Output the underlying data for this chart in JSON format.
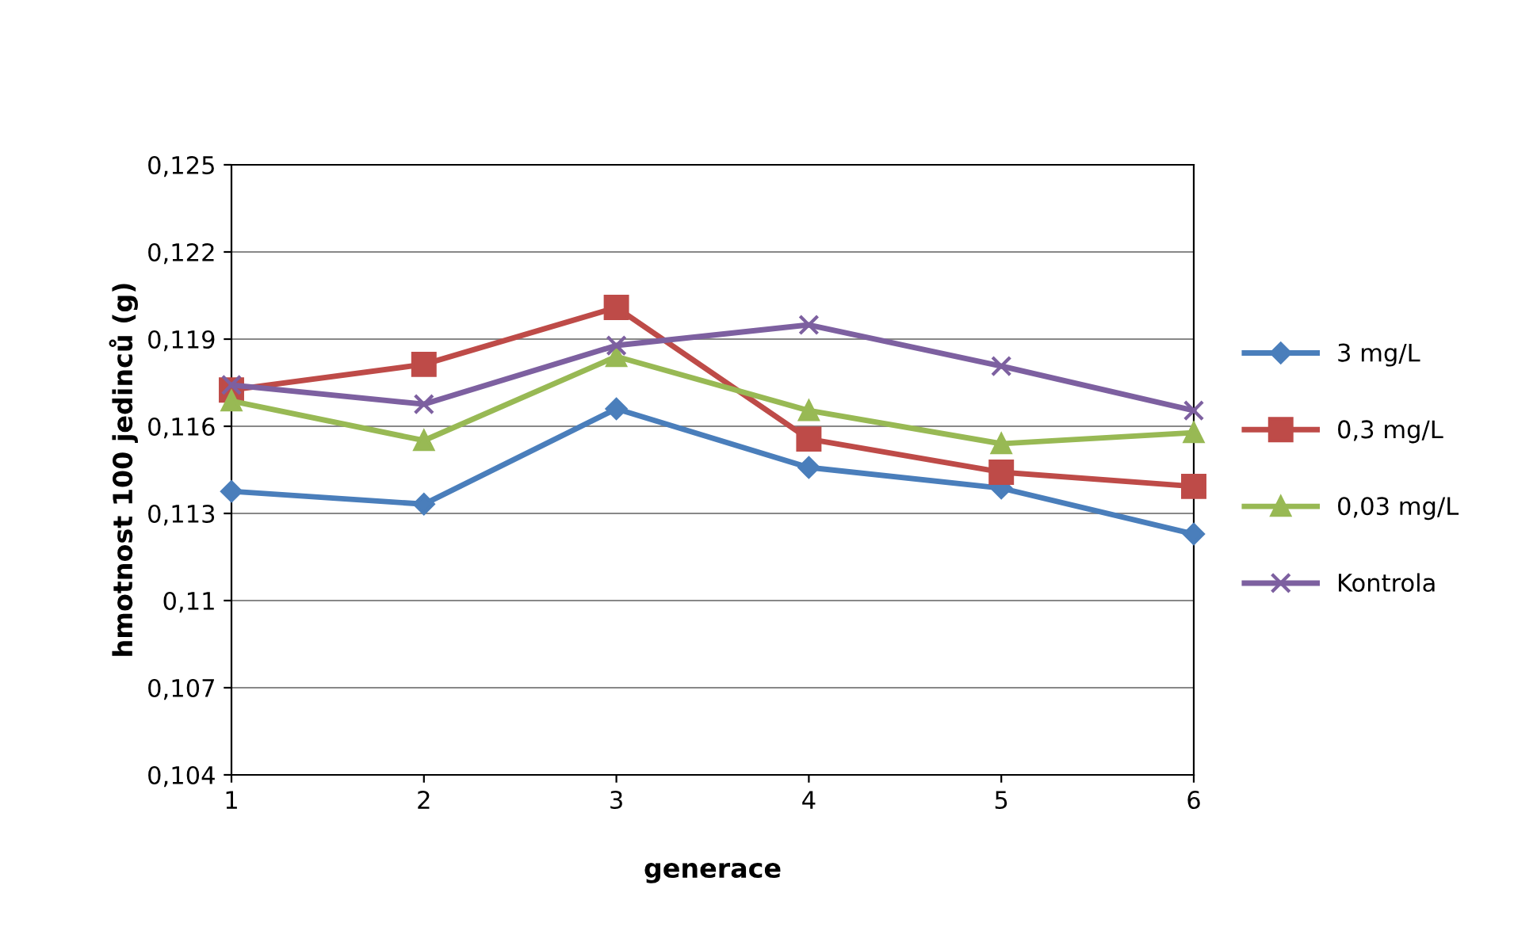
{
  "chart_data": {
    "type": "line",
    "xlabel": "generace",
    "ylabel": "hmotnost 100 jedinců (g)",
    "x": [
      1,
      2,
      3,
      4,
      5,
      6
    ],
    "series": [
      {
        "name": "3 mg/L",
        "color": "#4a7ebb",
        "marker": "diamond",
        "values": [
          0.11376,
          0.11332,
          0.1166,
          0.11458,
          0.11387,
          0.11229
        ]
      },
      {
        "name": "0,3 mg/L",
        "color": "#be4b48",
        "marker": "square",
        "values": [
          0.11725,
          0.11813,
          0.12009,
          0.11556,
          0.11442,
          0.11393
        ]
      },
      {
        "name": "0,03 mg/L",
        "color": "#98b954",
        "marker": "triangle",
        "values": [
          0.11687,
          0.11551,
          0.1184,
          0.11654,
          0.1154,
          0.11578
        ]
      },
      {
        "name": "Kontrola",
        "color": "#7d60a0",
        "marker": "cross",
        "values": [
          0.11742,
          0.11676,
          0.11878,
          0.11949,
          0.11807,
          0.11654
        ]
      }
    ],
    "xlim": [
      1,
      6
    ],
    "xticks": [
      1,
      2,
      3,
      4,
      5,
      6
    ],
    "ylim": [
      0.104,
      0.125
    ],
    "yticks": [
      {
        "value": 0.104,
        "label": "0,104"
      },
      {
        "value": 0.107,
        "label": "0,107"
      },
      {
        "value": 0.11,
        "label": "0,11"
      },
      {
        "value": 0.113,
        "label": "0,113"
      },
      {
        "value": 0.116,
        "label": "0,116"
      },
      {
        "value": 0.119,
        "label": "0,119"
      },
      {
        "value": 0.122,
        "label": "0,122"
      },
      {
        "value": 0.125,
        "label": "0,125"
      }
    ],
    "grid": "y",
    "legend": "right",
    "line_style": "solid"
  }
}
